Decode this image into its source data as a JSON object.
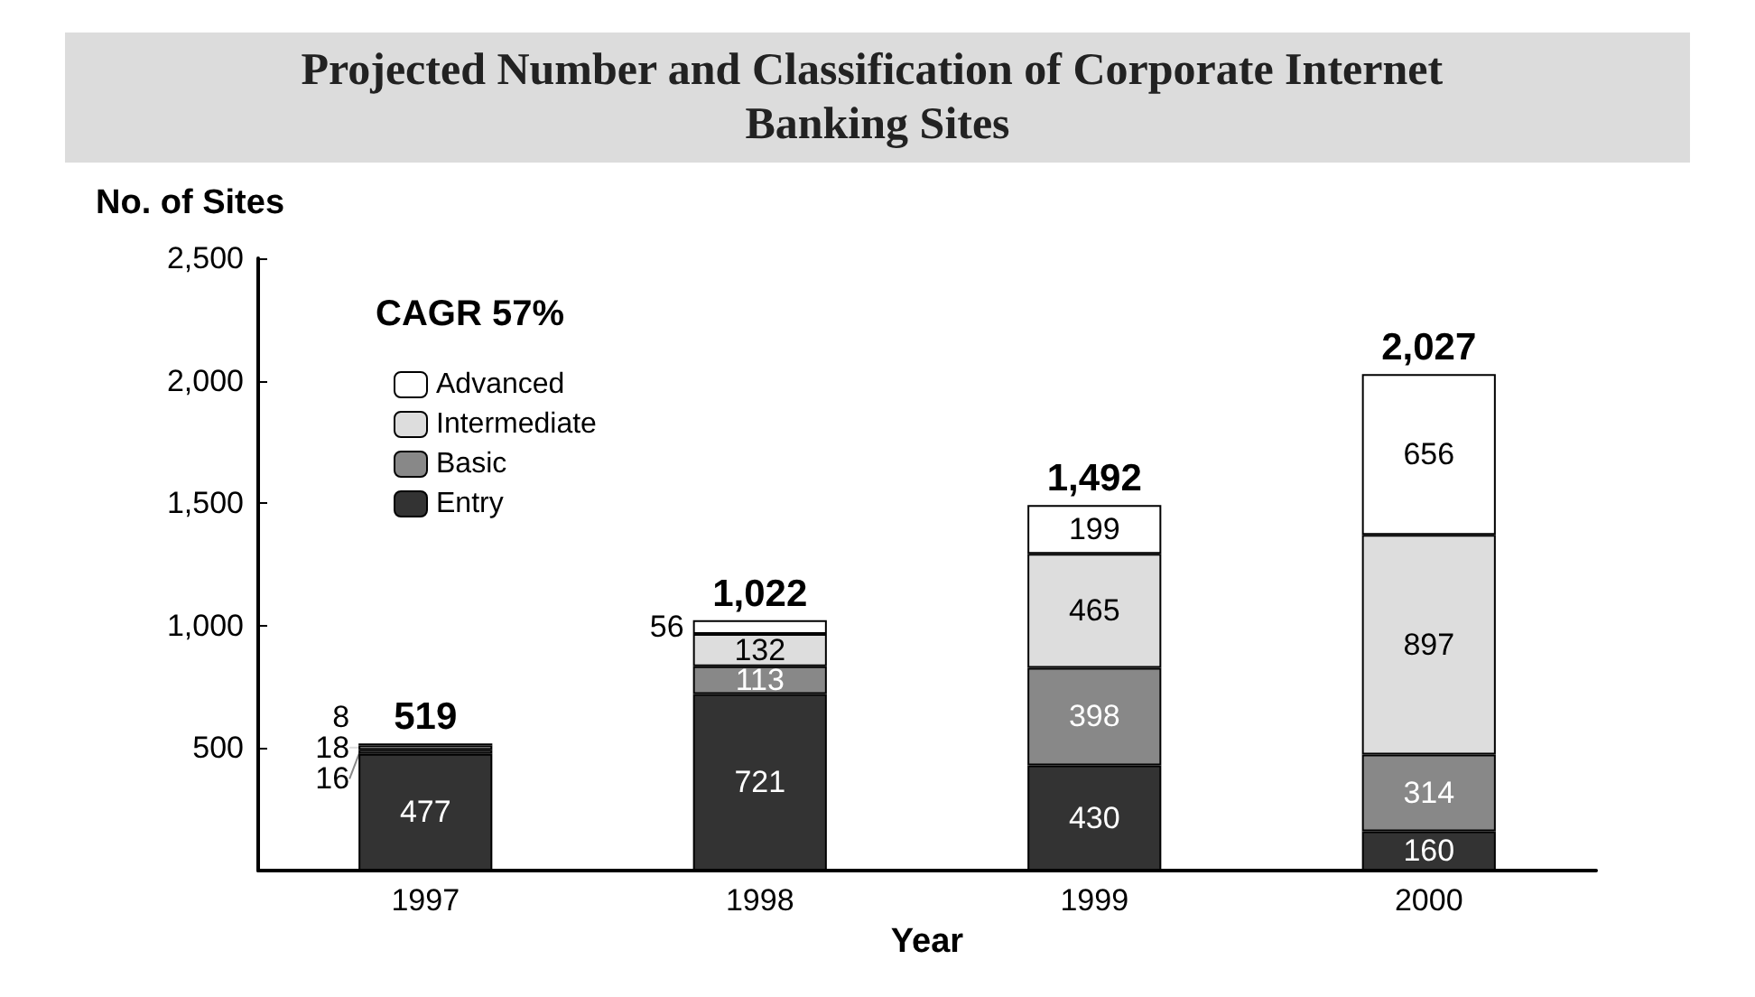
{
  "chart_data": {
    "type": "bar",
    "title": "Projected Number and Classification of Corporate Internet Banking Sites",
    "ylabel": "No. of Sites",
    "xlabel": "Year",
    "annotations": [
      "CAGR 57%"
    ],
    "categories": [
      "1997",
      "1998",
      "1999",
      "2000"
    ],
    "stacked": true,
    "series": [
      {
        "name": "Entry",
        "color": "#333333",
        "values": [
          477,
          721,
          430,
          160
        ]
      },
      {
        "name": "Basic",
        "color": "#888888",
        "values": [
          16,
          113,
          398,
          314
        ]
      },
      {
        "name": "Intermediate",
        "color": "#dddddd",
        "values": [
          18,
          132,
          465,
          897
        ]
      },
      {
        "name": "Advanced",
        "color": "#ffffff",
        "values": [
          8,
          56,
          199,
          656
        ]
      }
    ],
    "totals": [
      "519",
      "1,022",
      "1,492",
      "2,027"
    ],
    "data_labels": true,
    "legend": "top left",
    "grid": false,
    "ylim": [
      0,
      2500
    ],
    "yticks": [
      {
        "value": 0,
        "label": null
      },
      {
        "value": 500,
        "label": "500"
      },
      {
        "value": 1000,
        "label": "1,000"
      },
      {
        "value": 1500,
        "label": "1,500"
      },
      {
        "value": 2000,
        "label": "2,000"
      },
      {
        "value": 2500,
        "label": "2,500"
      }
    ]
  }
}
